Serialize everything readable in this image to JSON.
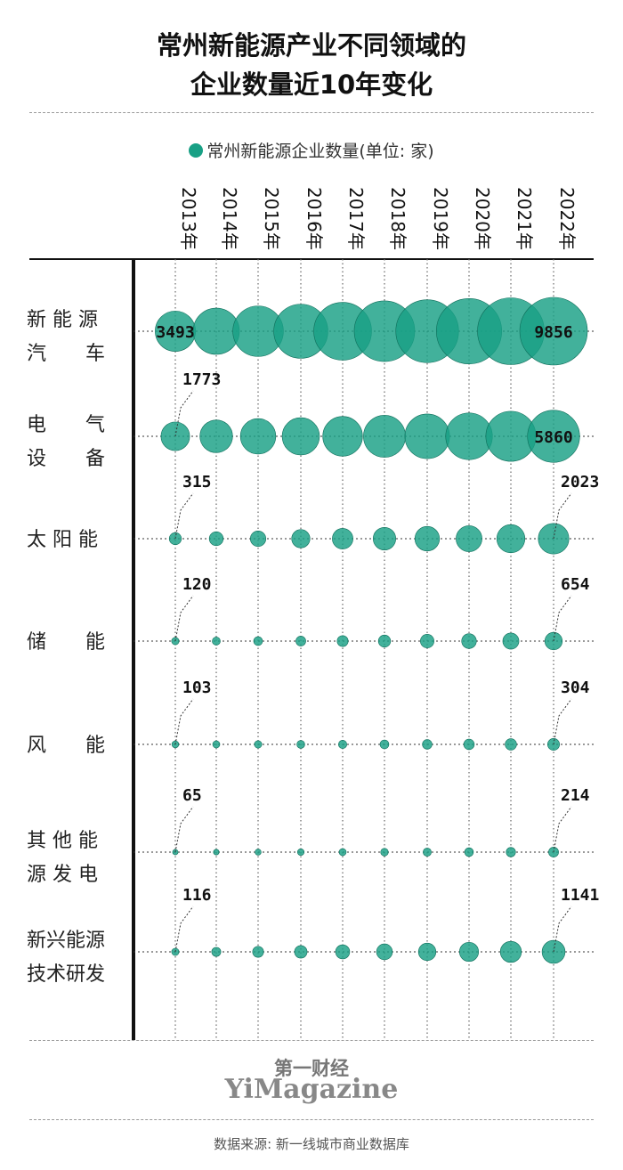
{
  "title_line1": "常州新能源产业不同领域的",
  "title_line2": "企业数量近10年变化",
  "legend": "常州新能源企业数量(单位: 家)",
  "colors": {
    "bubble": "#18a085",
    "text": "#111111"
  },
  "chart_data": {
    "type": "bubble",
    "x": [
      "2013年",
      "2014年",
      "2015年",
      "2016年",
      "2017年",
      "2018年",
      "2019年",
      "2020年",
      "2021年",
      "2022年"
    ],
    "series": [
      {
        "name": "新能源汽车",
        "label_lines": [
          "新 能 源",
          "汽　　车"
        ],
        "values": [
          3493,
          4600,
          5500,
          6300,
          7200,
          7900,
          8500,
          9200,
          9600,
          9856
        ],
        "labels": [
          {
            "index": 0,
            "text": "3493"
          },
          {
            "index": 9,
            "text": "9856"
          }
        ]
      },
      {
        "name": "电气设备",
        "label_lines": [
          "电　　气",
          "设　　备"
        ],
        "values": [
          1773,
          2300,
          2700,
          3000,
          3400,
          3800,
          4300,
          4700,
          5400,
          5860
        ],
        "labels": [
          {
            "index": 0,
            "text": "1773"
          },
          {
            "index": 9,
            "text": "5860"
          }
        ]
      },
      {
        "name": "太阳能",
        "label_lines": [
          "太 阳 能"
        ],
        "values": [
          315,
          420,
          520,
          720,
          920,
          1100,
          1300,
          1450,
          1700,
          2023
        ],
        "labels": [
          {
            "index": 0,
            "text": "315"
          },
          {
            "index": 9,
            "text": "2023"
          }
        ]
      },
      {
        "name": "储能",
        "label_lines": [
          "储　　能"
        ],
        "values": [
          120,
          140,
          170,
          210,
          260,
          320,
          400,
          470,
          560,
          654
        ],
        "labels": [
          {
            "index": 0,
            "text": "120"
          },
          {
            "index": 9,
            "text": "654"
          }
        ]
      },
      {
        "name": "风能",
        "label_lines": [
          "风　　能"
        ],
        "values": [
          103,
          110,
          120,
          135,
          150,
          170,
          200,
          240,
          280,
          304
        ],
        "labels": [
          {
            "index": 0,
            "text": "103"
          },
          {
            "index": 9,
            "text": "304"
          }
        ]
      },
      {
        "name": "其他能源发电",
        "label_lines": [
          "其 他 能",
          "源 发 电"
        ],
        "values": [
          65,
          70,
          80,
          95,
          110,
          125,
          145,
          165,
          190,
          214
        ],
        "labels": [
          {
            "index": 0,
            "text": "65"
          },
          {
            "index": 9,
            "text": "214"
          }
        ]
      },
      {
        "name": "新兴能源技术研发",
        "label_lines": [
          "新兴能源",
          "技术研发"
        ],
        "values": [
          116,
          180,
          260,
          340,
          430,
          540,
          660,
          790,
          960,
          1141
        ],
        "labels": [
          {
            "index": 0,
            "text": "116"
          },
          {
            "index": 9,
            "text": "1141"
          }
        ]
      }
    ]
  },
  "brand_cn": "第一财经",
  "brand_en": "YiMagazine",
  "source": "数据来源: 新一线城市商业数据库"
}
